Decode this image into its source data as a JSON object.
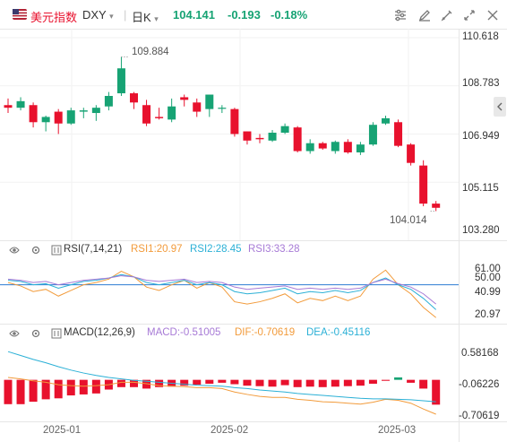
{
  "header": {
    "name": "美元指数",
    "symbol": "DXY",
    "symbol_caret": "▾",
    "interval": "日K",
    "interval_caret": "▾",
    "last": "104.141",
    "change": "-0.193",
    "change_pct": "-0.18%",
    "colors": {
      "down": "#17a374",
      "up": "#e8112d"
    }
  },
  "toolbar_icons": [
    "sliders-icon",
    "pencil-icon",
    "pen-icon",
    "pin-icon",
    "expand-icon",
    "close-icon"
  ],
  "x_axis": {
    "labels": [
      "2025-01",
      "2025-02",
      "2025-03"
    ]
  },
  "main": {
    "y_labels": [
      "110.618",
      "108.783",
      "106.949",
      "105.115",
      "103.280"
    ],
    "y_min": 103.28,
    "y_max": 110.618,
    "high_marker": "109.884",
    "low_marker": "104.014"
  },
  "rsi": {
    "title": "RSI(7,14,21)",
    "rsi1": "RSI1:20.97",
    "rsi2": "RSI2:28.45",
    "rsi3": "RSI3:33.28",
    "y_labels": [
      "61.00",
      "50.00",
      "40.99",
      "20.97"
    ],
    "colors": {
      "rsi1": "#f29b3b",
      "rsi2": "#2bb0d6",
      "rsi3": "#a77ad6",
      "ref": "#2b7cd3"
    }
  },
  "macd": {
    "title": "MACD(12,26,9)",
    "macd": "MACD:-0.51005",
    "dif": "DIF:-0.70619",
    "dea": "DEA:-0.45116",
    "y_labels": [
      "0.58168",
      "-0.06226",
      "-0.70619"
    ],
    "colors": {
      "macd": "#a77ad6",
      "dif": "#f29b3b",
      "dea": "#2bb0d6"
    }
  },
  "chart_data": {
    "type": "candlestick",
    "title": "美元指数 DXY 日K",
    "candles": [
      {
        "o": 108.05,
        "h": 108.3,
        "l": 107.75,
        "c": 107.95
      },
      {
        "o": 107.95,
        "h": 108.35,
        "l": 107.85,
        "c": 108.2
      },
      {
        "o": 108.05,
        "h": 108.15,
        "l": 107.2,
        "c": 107.4
      },
      {
        "o": 107.4,
        "h": 107.65,
        "l": 107.05,
        "c": 107.6
      },
      {
        "o": 107.8,
        "h": 107.9,
        "l": 106.95,
        "c": 107.35
      },
      {
        "o": 107.35,
        "h": 107.95,
        "l": 107.3,
        "c": 107.85
      },
      {
        "o": 107.8,
        "h": 107.95,
        "l": 107.55,
        "c": 107.85
      },
      {
        "o": 107.75,
        "h": 108.05,
        "l": 107.45,
        "c": 107.95
      },
      {
        "o": 108.0,
        "h": 108.55,
        "l": 107.85,
        "c": 108.4
      },
      {
        "o": 108.5,
        "h": 109.884,
        "l": 108.4,
        "c": 109.45
      },
      {
        "o": 108.5,
        "h": 108.55,
        "l": 107.9,
        "c": 108.15
      },
      {
        "o": 108.05,
        "h": 108.25,
        "l": 107.25,
        "c": 107.35
      },
      {
        "o": 107.6,
        "h": 107.95,
        "l": 107.5,
        "c": 107.55
      },
      {
        "o": 107.5,
        "h": 108.3,
        "l": 107.4,
        "c": 108.0
      },
      {
        "o": 108.35,
        "h": 108.45,
        "l": 108.0,
        "c": 108.25
      },
      {
        "o": 108.15,
        "h": 108.3,
        "l": 107.6,
        "c": 107.8
      },
      {
        "o": 107.9,
        "h": 108.45,
        "l": 107.6,
        "c": 108.45
      },
      {
        "o": 107.95,
        "h": 108.05,
        "l": 107.75,
        "c": 107.95
      },
      {
        "o": 107.9,
        "h": 107.95,
        "l": 106.85,
        "c": 106.95
      },
      {
        "o": 107.05,
        "h": 107.05,
        "l": 106.55,
        "c": 106.7
      },
      {
        "o": 106.8,
        "h": 106.95,
        "l": 106.6,
        "c": 106.75
      },
      {
        "o": 106.7,
        "h": 107.1,
        "l": 106.65,
        "c": 107.0
      },
      {
        "o": 107.0,
        "h": 107.35,
        "l": 106.95,
        "c": 107.25
      },
      {
        "o": 107.2,
        "h": 107.25,
        "l": 106.25,
        "c": 106.3
      },
      {
        "o": 106.3,
        "h": 106.75,
        "l": 106.2,
        "c": 106.6
      },
      {
        "o": 106.6,
        "h": 106.65,
        "l": 106.35,
        "c": 106.4
      },
      {
        "o": 106.3,
        "h": 106.7,
        "l": 106.2,
        "c": 106.65
      },
      {
        "o": 106.65,
        "h": 106.75,
        "l": 106.2,
        "c": 106.25
      },
      {
        "o": 106.25,
        "h": 106.65,
        "l": 106.15,
        "c": 106.55
      },
      {
        "o": 106.55,
        "h": 107.4,
        "l": 106.5,
        "c": 107.3
      },
      {
        "o": 107.35,
        "h": 107.65,
        "l": 107.3,
        "c": 107.55
      },
      {
        "o": 107.4,
        "h": 107.5,
        "l": 106.45,
        "c": 106.5
      },
      {
        "o": 106.55,
        "h": 106.6,
        "l": 105.75,
        "c": 105.85
      },
      {
        "o": 105.75,
        "h": 105.95,
        "l": 104.2,
        "c": 104.3
      },
      {
        "o": 104.3,
        "h": 104.4,
        "l": 104.014,
        "c": 104.141
      }
    ],
    "rsi_series": [
      {
        "name": "RSI1",
        "values": [
          52,
          49,
          44,
          46,
          40,
          45,
          50,
          52,
          55,
          62,
          57,
          48,
          45,
          50,
          54,
          47,
          52,
          48,
          35,
          33,
          35,
          38,
          42,
          34,
          38,
          36,
          40,
          36,
          40,
          55,
          63,
          50,
          42,
          30,
          21
        ]
      },
      {
        "name": "RSI2",
        "values": [
          54,
          53,
          50,
          51,
          47,
          50,
          53,
          54,
          56,
          59,
          57,
          52,
          50,
          52,
          54,
          50,
          52,
          50,
          44,
          42,
          43,
          45,
          47,
          42,
          44,
          43,
          45,
          43,
          45,
          52,
          56,
          50,
          46,
          38,
          28
        ]
      },
      {
        "name": "RSI3",
        "values": [
          55,
          54,
          52,
          53,
          50,
          52,
          54,
          55,
          56,
          58,
          57,
          54,
          53,
          54,
          55,
          52,
          53,
          52,
          48,
          46,
          47,
          48,
          49,
          46,
          47,
          46,
          47,
          46,
          47,
          52,
          55,
          51,
          48,
          42,
          33
        ]
      }
    ],
    "macd_series": [
      {
        "name": "DIF",
        "values": [
          0.05,
          0.02,
          -0.02,
          -0.05,
          -0.1,
          -0.12,
          -0.13,
          -0.12,
          -0.1,
          -0.05,
          -0.05,
          -0.08,
          -0.12,
          -0.13,
          -0.14,
          -0.16,
          -0.16,
          -0.18,
          -0.25,
          -0.3,
          -0.34,
          -0.36,
          -0.36,
          -0.4,
          -0.42,
          -0.45,
          -0.46,
          -0.48,
          -0.5,
          -0.46,
          -0.4,
          -0.42,
          -0.48,
          -0.6,
          -0.70619
        ]
      },
      {
        "name": "DEA",
        "values": [
          0.58,
          0.5,
          0.42,
          0.35,
          0.27,
          0.2,
          0.14,
          0.09,
          0.05,
          0.02,
          -0.01,
          -0.03,
          -0.05,
          -0.07,
          -0.09,
          -0.11,
          -0.12,
          -0.13,
          -0.16,
          -0.18,
          -0.21,
          -0.23,
          -0.25,
          -0.28,
          -0.3,
          -0.32,
          -0.34,
          -0.36,
          -0.38,
          -0.39,
          -0.39,
          -0.4,
          -0.41,
          -0.43,
          -0.45116
        ]
      },
      {
        "name": "MACD",
        "values": [
          -0.5,
          -0.5,
          -0.45,
          -0.4,
          -0.38,
          -0.32,
          -0.3,
          -0.28,
          -0.2,
          -0.15,
          -0.15,
          -0.18,
          -0.15,
          -0.14,
          -0.12,
          -0.1,
          -0.08,
          -0.06,
          -0.09,
          -0.12,
          -0.13,
          -0.14,
          -0.11,
          -0.15,
          -0.14,
          -0.15,
          -0.14,
          -0.13,
          -0.12,
          -0.08,
          -0.02,
          0.05,
          -0.06,
          -0.18,
          -0.51005
        ]
      }
    ]
  }
}
